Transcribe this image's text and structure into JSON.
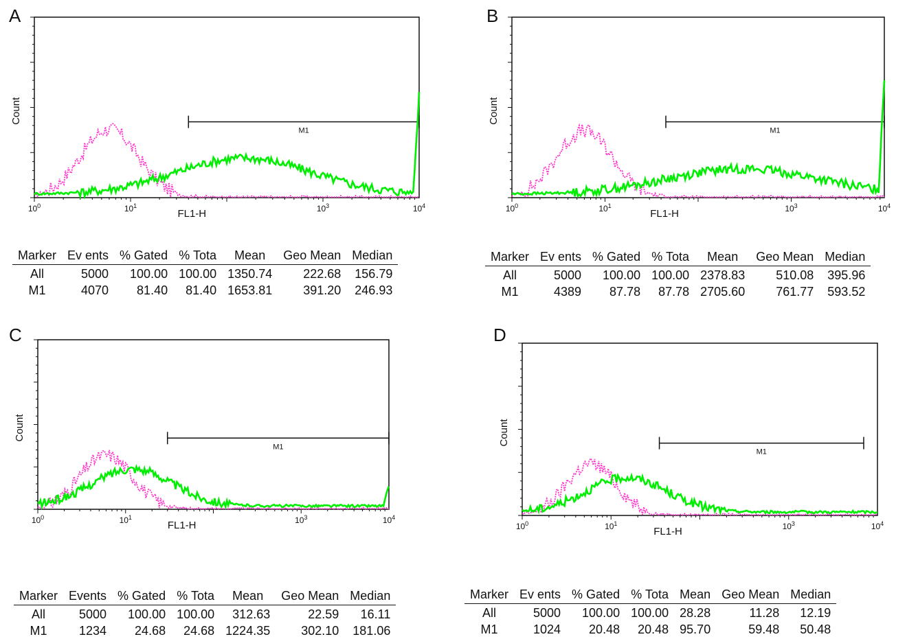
{
  "chart_data": [
    {
      "panel": "A",
      "type": "histogram-overlay",
      "ylabel": "Count",
      "xlabel": "FL1-H",
      "xscale": "log",
      "xlim": [
        1,
        10000
      ],
      "xticks": [
        "10^0",
        "10^1",
        "10^3",
        "10^4"
      ],
      "marker": {
        "label": "M1",
        "from": 40,
        "to": 10000
      },
      "series": [
        {
          "color": "#ff33cc",
          "style": "dotted",
          "peak_x": 6,
          "spread": 0.3,
          "peak_y": 0.38
        },
        {
          "color": "#00ee00",
          "style": "solid",
          "peak_x": 150,
          "spread": 0.7,
          "peak_y": 0.2,
          "edge_spike": 0.55
        }
      ],
      "table": {
        "headers": [
          "Marker",
          "Ev ents",
          "% Gated",
          "% Tota",
          "Mean",
          "Geo Mean",
          "Median"
        ],
        "rows": [
          [
            "All",
            "5000",
            "100.00",
            "100.00",
            "1350.74",
            "222.68",
            "156.79"
          ],
          [
            "M1",
            "4070",
            "81.40",
            "81.40",
            "1653.81",
            "391.20",
            "246.93"
          ]
        ]
      }
    },
    {
      "panel": "B",
      "type": "histogram-overlay",
      "ylabel": "Count",
      "xlabel": "FL1-H",
      "xscale": "log",
      "xlim": [
        1,
        10000
      ],
      "xticks": [
        "10^0",
        "10^1",
        "10^3",
        "10^4"
      ],
      "marker": {
        "label": "M1",
        "from": 45,
        "to": 10000
      },
      "series": [
        {
          "color": "#ff33cc",
          "style": "dotted",
          "peak_x": 6,
          "spread": 0.3,
          "peak_y": 0.37
        },
        {
          "color": "#00ee00",
          "style": "solid",
          "peak_x": 300,
          "spread": 0.8,
          "peak_y": 0.14,
          "edge_spike": 0.62
        }
      ],
      "table": {
        "headers": [
          "Marker",
          "Ev ents",
          "% Gated",
          "% Tota",
          "Mean",
          "Geo Mean",
          "Median"
        ],
        "rows": [
          [
            "All",
            "5000",
            "100.00",
            "100.00",
            "2378.83",
            "510.08",
            "395.96"
          ],
          [
            "M1",
            "4389",
            "87.78",
            "87.78",
            "2705.60",
            "761.77",
            "593.52"
          ]
        ]
      }
    },
    {
      "panel": "C",
      "type": "histogram-overlay",
      "ylabel": "Count",
      "xlabel": "FL1-H",
      "xscale": "log",
      "xlim": [
        1,
        10000
      ],
      "xticks": [
        "10^0",
        "10^1",
        "10^3",
        "10^4"
      ],
      "marker": {
        "label": "M1",
        "from": 30,
        "to": 10000
      },
      "series": [
        {
          "color": "#ff33cc",
          "style": "dotted",
          "peak_x": 6,
          "spread": 0.3,
          "peak_y": 0.32
        },
        {
          "color": "#00ee00",
          "style": "solid",
          "peak_x": 12,
          "spread": 0.45,
          "peak_y": 0.22,
          "edge_spike": 0.1
        }
      ],
      "table": {
        "headers": [
          "Marker",
          "Events",
          "% Gated",
          "% Tota",
          "Mean",
          "Geo Mean",
          "Median"
        ],
        "rows": [
          [
            "All",
            "5000",
            "100.00",
            "100.00",
            "312.63",
            "22.59",
            "16.11"
          ],
          [
            "M1",
            "1234",
            "24.68",
            "24.68",
            "1224.35",
            "302.10",
            "181.06"
          ]
        ]
      }
    },
    {
      "panel": "D",
      "type": "histogram-overlay",
      "ylabel": "Count",
      "xlabel": "FL1-H",
      "xscale": "log",
      "xlim": [
        1,
        10000
      ],
      "xticks": [
        "10^0",
        "10^1",
        "10^3",
        "10^4"
      ],
      "marker": {
        "label": "M1",
        "from": 35,
        "to": 7000
      },
      "series": [
        {
          "color": "#ff33cc",
          "style": "dotted",
          "peak_x": 6,
          "spread": 0.28,
          "peak_y": 0.3
        },
        {
          "color": "#00ee00",
          "style": "solid",
          "peak_x": 15,
          "spread": 0.45,
          "peak_y": 0.2,
          "edge_spike": 0
        }
      ],
      "table": {
        "headers": [
          "Marker",
          "Ev ents",
          "% Gated",
          "% Tota",
          "Mean",
          "Geo Mean",
          "Median"
        ],
        "rows": [
          [
            "All",
            "5000",
            "100.00",
            "100.00",
            "28.28",
            "11.28",
            "12.19"
          ],
          [
            "M1",
            "1024",
            "20.48",
            "20.48",
            "95.70",
            "59.48",
            "50.48"
          ]
        ]
      }
    }
  ]
}
